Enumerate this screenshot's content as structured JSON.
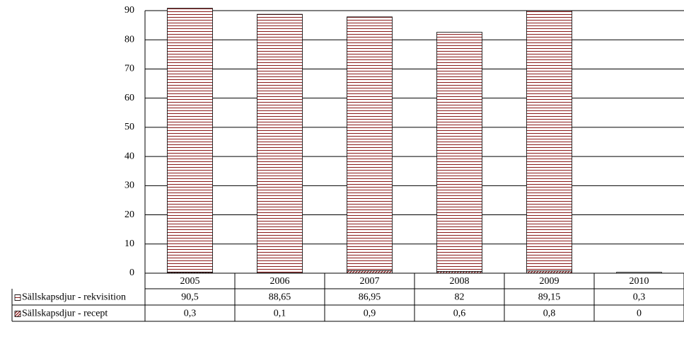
{
  "chart_data": {
    "type": "bar",
    "stacked": true,
    "categories": [
      "2005",
      "2006",
      "2007",
      "2008",
      "2009",
      "2010"
    ],
    "series": [
      {
        "name": "Sällskapsdjur - rekvisition",
        "color": "#8b1a1a",
        "pattern": "horizontal",
        "values": [
          90.5,
          88.65,
          86.95,
          82,
          89.15,
          0.3
        ],
        "value_labels": [
          "90,5",
          "88,65",
          "86,95",
          "82",
          "89,15",
          "0,3"
        ]
      },
      {
        "name": "Sällskapsdjur - recept",
        "color": "#8b1a1a",
        "pattern": "diagonal",
        "values": [
          0.3,
          0.1,
          0.9,
          0.6,
          0.8,
          0
        ],
        "value_labels": [
          "0,3",
          "0,1",
          "0,9",
          "0,6",
          "0,8",
          "0"
        ]
      }
    ],
    "ylim": [
      0,
      90
    ],
    "yticks": [
      0,
      10,
      20,
      30,
      40,
      50,
      60,
      70,
      80,
      90
    ],
    "grid": true
  }
}
